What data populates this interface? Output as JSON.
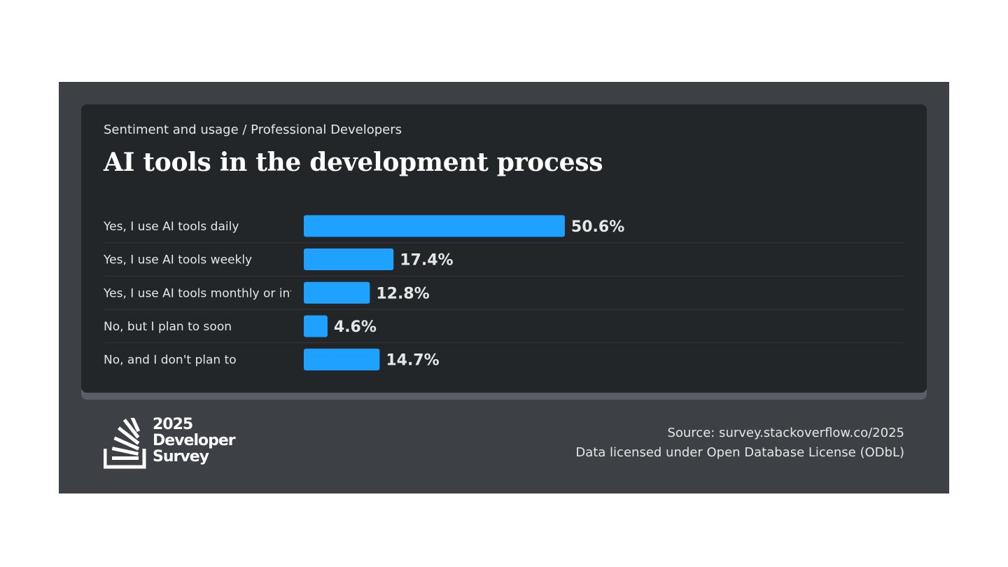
{
  "header": {
    "subtitle": "Sentiment and usage / Professional Developers",
    "title": "AI tools in the development process"
  },
  "chart_data": {
    "type": "bar",
    "orientation": "horizontal",
    "categories": [
      "Yes, I use AI tools daily",
      "Yes, I use AI tools weekly",
      "Yes, I use AI tools monthly or infrequently",
      "No, but I plan to soon",
      "No, and I don't plan to"
    ],
    "values": [
      50.6,
      17.4,
      12.8,
      4.6,
      14.7
    ],
    "value_labels": [
      "50.6%",
      "17.4%",
      "12.8%",
      "4.6%",
      "14.7%"
    ],
    "unit": "%",
    "xlim": [
      0,
      100
    ],
    "bar_color": "#1fa1ff",
    "grid": false,
    "legend": "none"
  },
  "footer": {
    "source": "Source: survey.stackoverflow.co/2025",
    "license": "Data licensed under Open Database License (ODbL)",
    "logo": {
      "year": "2025",
      "line1": "Developer",
      "line2": "Survey",
      "icon": "stack-overflow-icon"
    }
  },
  "colors": {
    "frame": "#3d4145",
    "card": "#232629",
    "bar": "#1fa1ff",
    "text": "#e6e6e6"
  }
}
